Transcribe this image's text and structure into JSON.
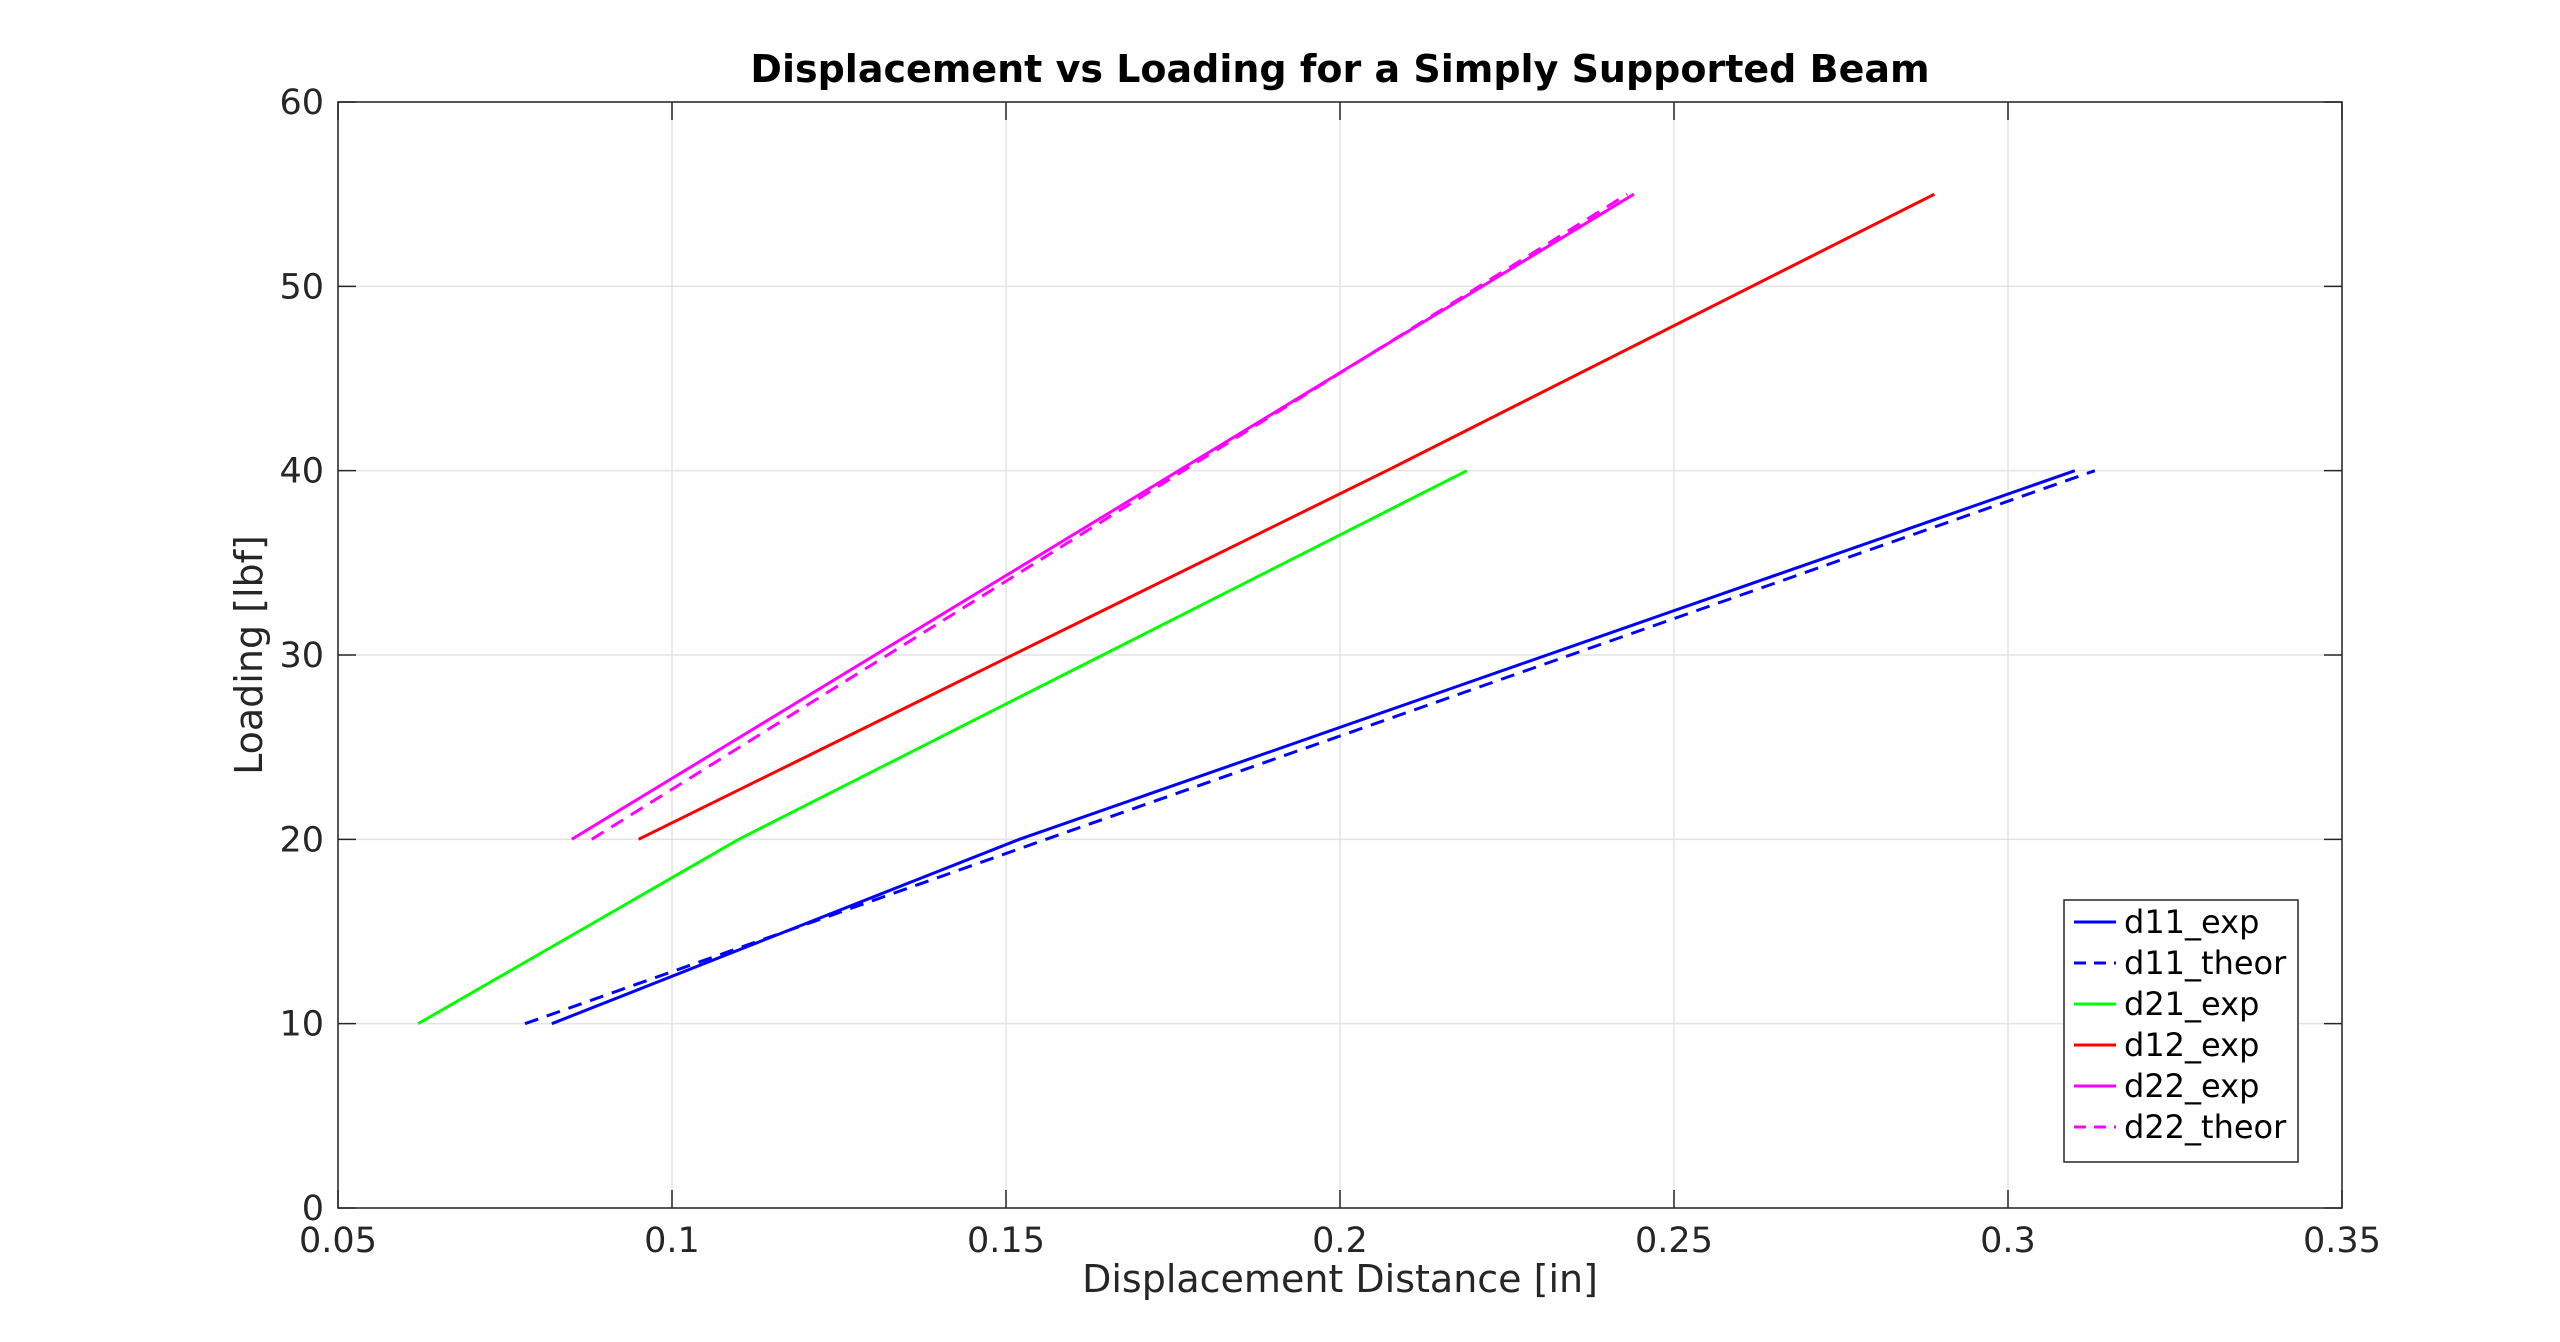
{
  "chart_data": {
    "type": "line",
    "title": "Displacement vs Loading for a Simply Supported Beam",
    "xlabel": "Displacement Distance [in]",
    "ylabel": "Loading [lbf]",
    "xlim": [
      0.05,
      0.35
    ],
    "ylim": [
      0,
      60
    ],
    "xticks": [
      0.05,
      0.1,
      0.15,
      0.2,
      0.25,
      0.3,
      0.35
    ],
    "xtick_labels": [
      "0.05",
      "0.1",
      "0.15",
      "0.2",
      "0.25",
      "0.3",
      "0.35"
    ],
    "yticks": [
      0,
      10,
      20,
      30,
      40,
      50,
      60
    ],
    "ytick_labels": [
      "0",
      "10",
      "20",
      "30",
      "40",
      "50",
      "60"
    ],
    "grid": true,
    "legend_position": "bottom-right",
    "series": [
      {
        "name": "d11_exp",
        "color": "#0000ff",
        "dash": "solid",
        "x": [
          0.082,
          0.152,
          0.31
        ],
        "y": [
          10,
          20,
          40
        ]
      },
      {
        "name": "d11_theor",
        "color": "#0000ff",
        "dash": "dashed",
        "x": [
          0.078,
          0.156,
          0.313
        ],
        "y": [
          10,
          20,
          40
        ]
      },
      {
        "name": "d21_exp",
        "color": "#00ff00",
        "dash": "solid",
        "x": [
          0.062,
          0.11,
          0.219
        ],
        "y": [
          10,
          20,
          40
        ]
      },
      {
        "name": "d12_exp",
        "color": "#ff0000",
        "dash": "solid",
        "x": [
          0.095,
          0.207,
          0.289
        ],
        "y": [
          20,
          40,
          55
        ]
      },
      {
        "name": "d22_exp",
        "color": "#ff00ff",
        "dash": "solid",
        "x": [
          0.085,
          0.244
        ],
        "y": [
          20,
          55
        ]
      },
      {
        "name": "d22_theor",
        "color": "#ff00ff",
        "dash": "dashed",
        "x": [
          0.088,
          0.243
        ],
        "y": [
          20,
          55
        ]
      }
    ]
  }
}
